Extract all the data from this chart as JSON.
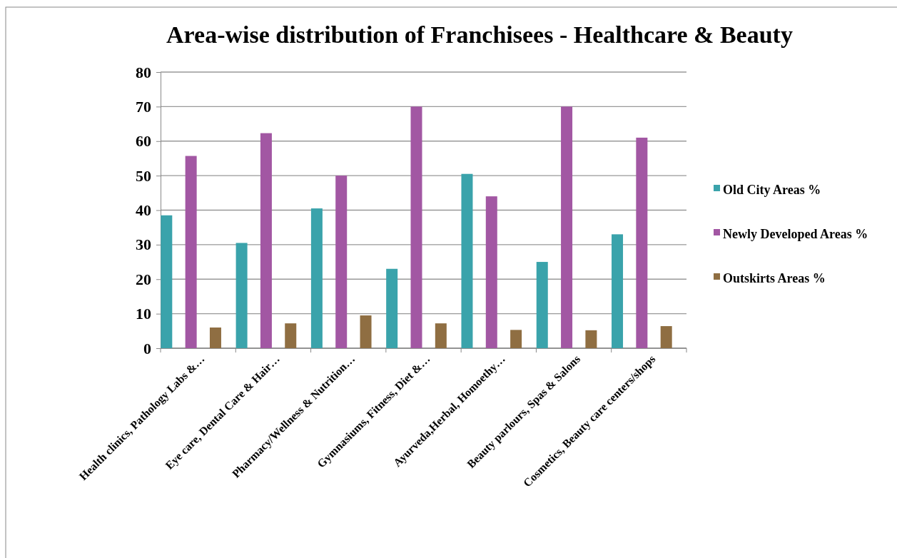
{
  "chart_data": {
    "type": "bar",
    "title": "Area-wise distribution of Franchisees - Healthcare & Beauty",
    "categories": [
      "Health clinics, Pathology Labs &…",
      "Eye care, Dental Care & Hair…",
      "Pharmacy/Wellness & Nutrition…",
      "Gymnasiums, Fitness, Diet &…",
      "Ayurveda,Herbal, Homoethy…",
      "Beauty parlours, Spas & Salons",
      "Cosmetics, Beauty care centers/shops"
    ],
    "series": [
      {
        "name": "Old City Areas %",
        "color": "#3aa3ab",
        "values": [
          38.5,
          30.5,
          40.5,
          23,
          50.5,
          25,
          33
        ]
      },
      {
        "name": "Newly Developed Areas %",
        "color": "#a257a3",
        "values": [
          55.7,
          62.3,
          50,
          70,
          44,
          70,
          61
        ]
      },
      {
        "name": "Outskirts Areas %",
        "color": "#8f6e42",
        "values": [
          6,
          7.2,
          9.5,
          7.2,
          5.3,
          5.2,
          6.4
        ]
      }
    ],
    "ylim": [
      0,
      80
    ],
    "yticks": [
      0,
      10,
      20,
      30,
      40,
      50,
      60,
      70,
      80
    ],
    "grid": "y",
    "legend": "right"
  }
}
